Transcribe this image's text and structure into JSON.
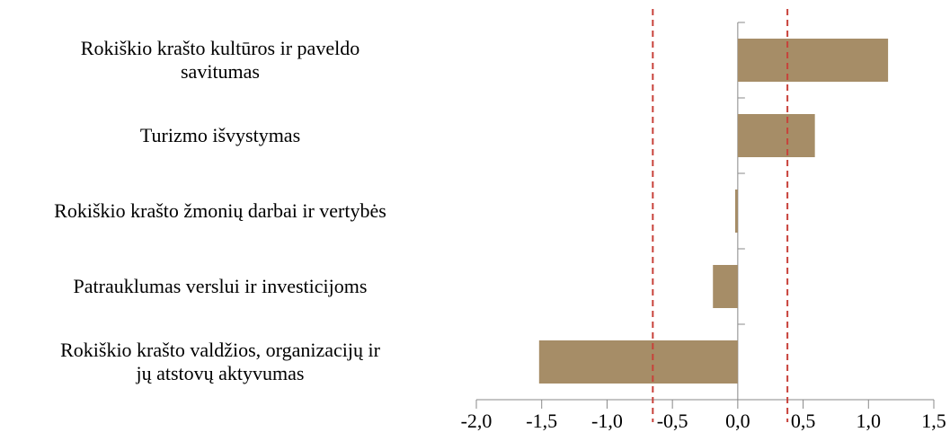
{
  "chart_data": {
    "type": "barh",
    "categories": [
      "Rokiškio krašto kultūros ir  paveldo\nsavitumas",
      "Turizmo išvystymas",
      "Rokiškio krašto žmonių darbai ir vertybės",
      "Patrauklumas verslui ir investicijoms",
      "Rokiškio krašto valdžios, organizacijų  ir\njų atstovų aktyvumas"
    ],
    "values": [
      1.15,
      0.59,
      -0.02,
      -0.19,
      -1.52
    ],
    "color": "#a68d67",
    "xlim": [
      -2,
      1.5
    ],
    "xticks": [
      {
        "value": -2,
        "label": "-2,0"
      },
      {
        "value": -1.5,
        "label": "-1,5"
      },
      {
        "value": -1,
        "label": "-1,0"
      },
      {
        "value": -0.5,
        "label": "-0,5"
      },
      {
        "value": 0,
        "label": "0,0"
      },
      {
        "value": 0.5,
        "label": "0,5"
      },
      {
        "value": 1,
        "label": "1,0"
      },
      {
        "value": 1.5,
        "label": "1,5"
      }
    ],
    "reference_lines": [
      -0.65,
      0.38
    ],
    "reference_color": "#c8413a"
  }
}
